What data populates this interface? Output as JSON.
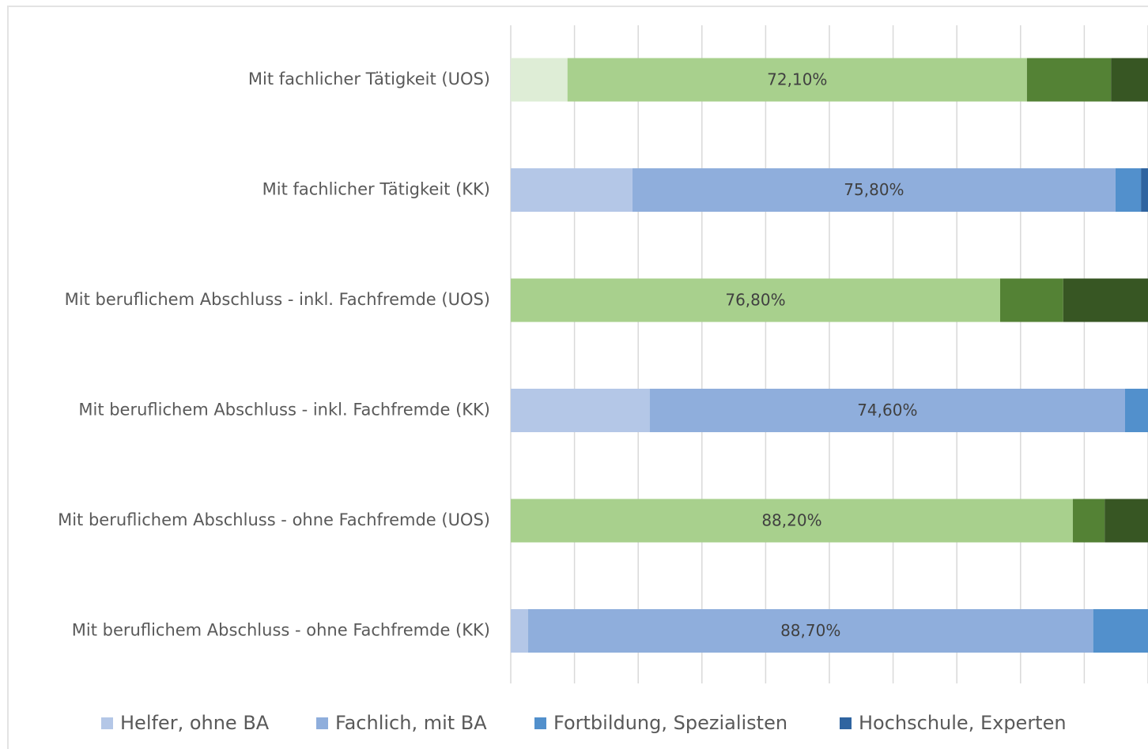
{
  "chart_data": {
    "type": "stacked_bar_horizontal",
    "categories": [
      "Mit fachlicher Tätigkeit (UOS)",
      "Mit fachlicher Tätigkeit (KK)",
      "Mit beruflichem Abschluss - inkl. Fachfremde (UOS)",
      "Mit beruflichem Abschluss - inkl. Fachfremde (KK)",
      "Mit beruflichem Abschluss - ohne Fachfremde (UOS)",
      "Mit beruflichem Abschluss - ohne Fachfremde (KK)"
    ],
    "series": [
      {
        "name": "Helfer, ohne BA",
        "color": "#b4c7e7",
        "colors": [
          "#deedd6",
          "#b4c7e7",
          "#deedd6",
          "#b4c7e7",
          "#deedd6",
          "#b4c7e7"
        ],
        "values": [
          8.9,
          19.1,
          0,
          21.8,
          0,
          2.7
        ]
      },
      {
        "name": "Fachlich, mit BA",
        "color": "#8faedc",
        "colors": [
          "#a8d08d",
          "#8faedc",
          "#a8d08d",
          "#8faedc",
          "#a8d08d",
          "#8faedc"
        ],
        "values": [
          72.1,
          75.8,
          76.8,
          74.6,
          88.2,
          88.7
        ],
        "value_labels": [
          "72,10%",
          "75,80%",
          "76,80%",
          "74,60%",
          "88,20%",
          "88,70%"
        ]
      },
      {
        "name": "Fortbildung, Spezialisten",
        "color": "#5290cc",
        "colors": [
          "#548235",
          "#5290cc",
          "#548235",
          "#5290cc",
          "#548235",
          "#5290cc"
        ],
        "values": [
          13.2,
          4.0,
          9.9,
          3.6,
          5.0,
          8.6
        ]
      },
      {
        "name": "Hochschule, Experten",
        "color": "#2f64a0",
        "colors": [
          "#375623",
          "#2f64a0",
          "#375623",
          "#2f64a0",
          "#375623",
          "#2f64a0"
        ],
        "values": [
          5.8,
          1.1,
          13.3,
          0,
          6.8,
          0
        ]
      }
    ],
    "xlim": [
      0,
      100
    ],
    "xticks": [
      0,
      10,
      20,
      30,
      40,
      50,
      60,
      70,
      80,
      90,
      100
    ],
    "grid": true
  }
}
